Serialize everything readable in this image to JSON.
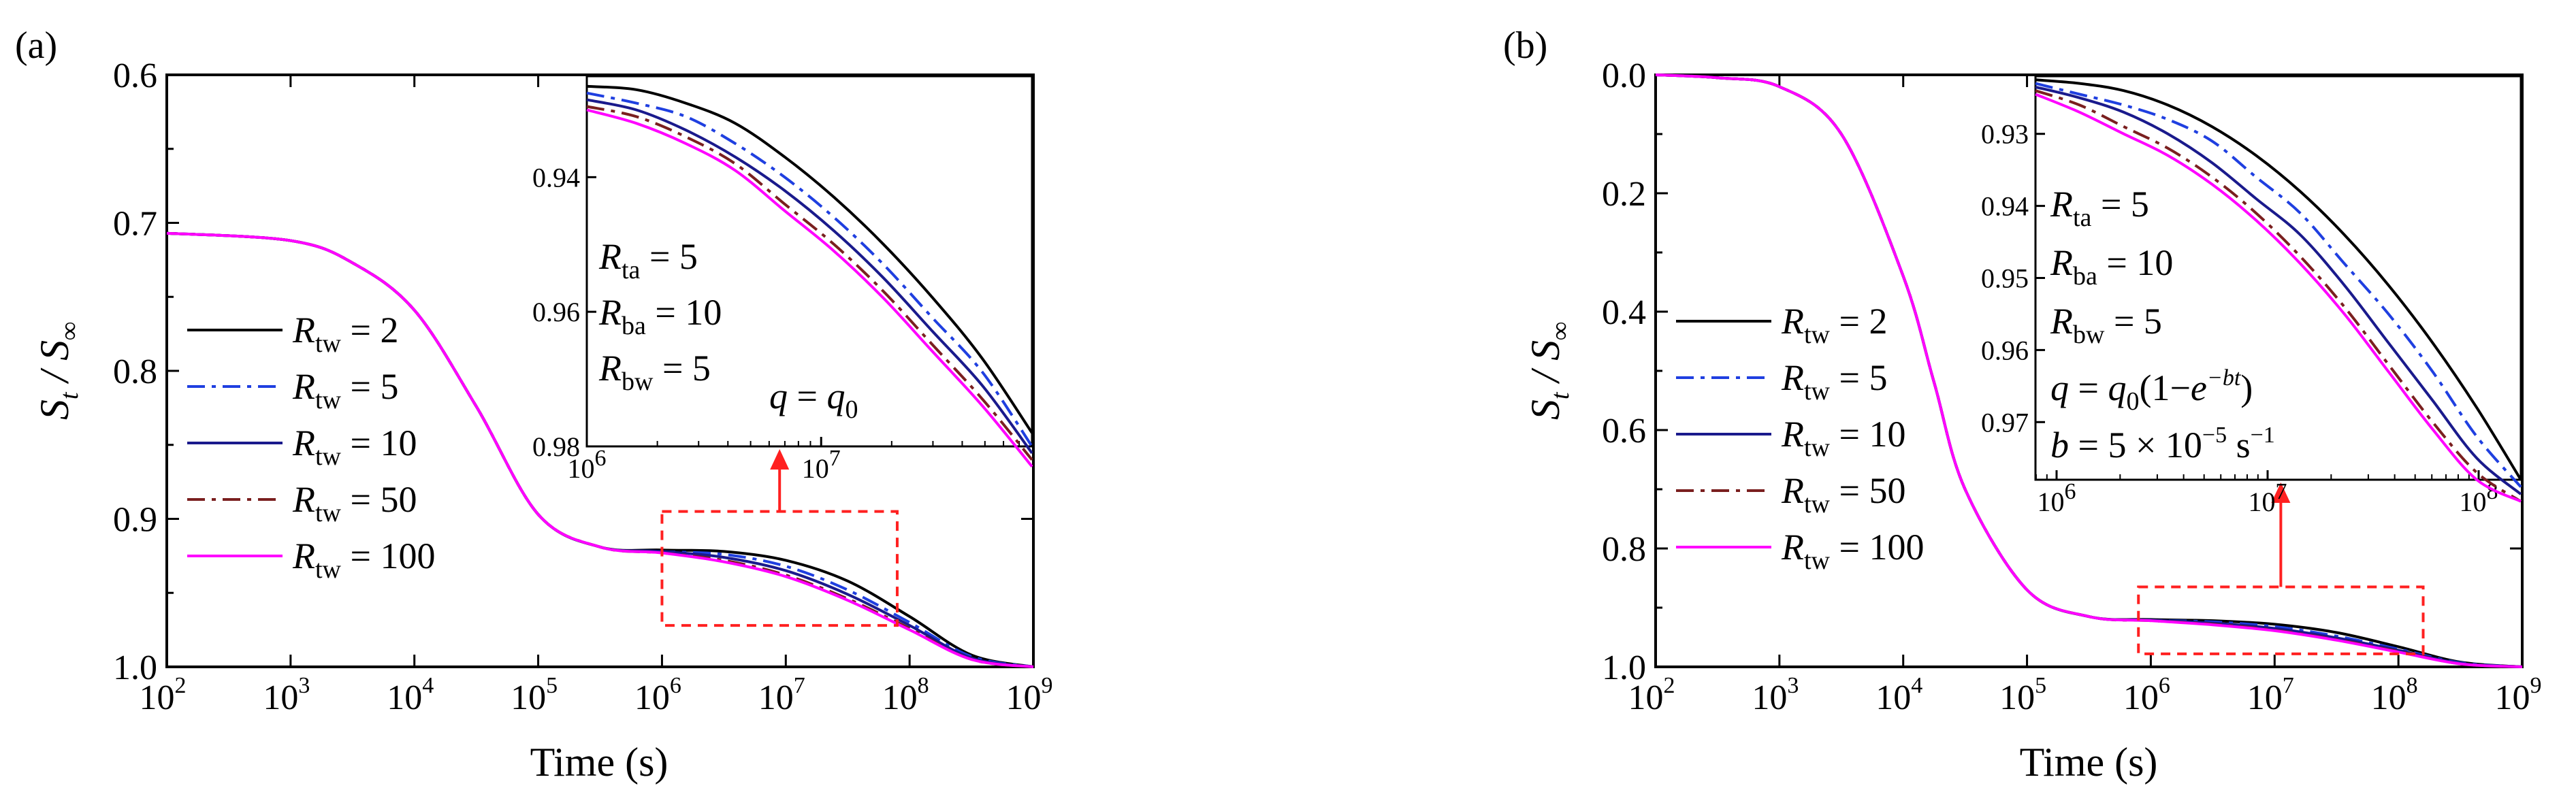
{
  "figure": {
    "panels": [
      "(a)",
      "(b)"
    ]
  },
  "chart_data": [
    {
      "type": "line",
      "panel": "(a)",
      "xlabel": "Time (s)",
      "ylabel": "S_t / S_∞",
      "xscale": "log",
      "xlim": [
        100,
        1000000000
      ],
      "ylim": [
        0.6,
        1.0
      ],
      "y_inverted": true,
      "x_ticks": [
        "2",
        "3",
        "4",
        "5",
        "6",
        "7",
        "8",
        "9"
      ],
      "y_ticks": [
        "0.6",
        "0.7",
        "0.8",
        "0.9",
        "1.0"
      ],
      "legend": [
        {
          "base": "R",
          "sub": "tw",
          "label": "= 2",
          "color": "#000000",
          "dash": "solid"
        },
        {
          "base": "R",
          "sub": "tw",
          "label": "= 5",
          "color": "#1f3fe0",
          "dash": "dashdot"
        },
        {
          "base": "R",
          "sub": "tw",
          "label": "= 10",
          "color": "#1a1a8c",
          "dash": "solid"
        },
        {
          "base": "R",
          "sub": "tw",
          "label": "= 50",
          "color": "#7a1f1f",
          "dash": "dashdot"
        },
        {
          "base": "R",
          "sub": "tw",
          "label": "= 100",
          "color": "#ff00ff",
          "dash": "solid"
        }
      ],
      "series": [
        {
          "name": "Rtw = 2",
          "x_log10": [
            2,
            3,
            3.5,
            4,
            4.5,
            5,
            5.5,
            6,
            6.5,
            7,
            7.5,
            8,
            8.5,
            9
          ],
          "y": [
            0.707,
            0.712,
            0.727,
            0.759,
            0.824,
            0.897,
            0.919,
            0.921,
            0.922,
            0.928,
            0.942,
            0.966,
            0.992,
            1.0
          ]
        },
        {
          "name": "Rtw = 5",
          "x_log10": [
            2,
            3,
            3.5,
            4,
            4.5,
            5,
            5.5,
            6,
            6.5,
            7,
            7.5,
            8,
            8.5,
            9
          ],
          "y": [
            0.707,
            0.712,
            0.727,
            0.759,
            0.824,
            0.897,
            0.919,
            0.922,
            0.924,
            0.932,
            0.948,
            0.97,
            0.993,
            1.0
          ]
        },
        {
          "name": "Rtw = 10",
          "x_log10": [
            2,
            3,
            3.5,
            4,
            4.5,
            5,
            5.5,
            6,
            6.5,
            7,
            7.5,
            8,
            8.5,
            9
          ],
          "y": [
            0.707,
            0.712,
            0.727,
            0.759,
            0.824,
            0.897,
            0.919,
            0.922,
            0.926,
            0.935,
            0.951,
            0.972,
            0.994,
            1.0
          ]
        },
        {
          "name": "Rtw = 50",
          "x_log10": [
            2,
            3,
            3.5,
            4,
            4.5,
            5,
            5.5,
            6,
            6.5,
            7,
            7.5,
            8,
            8.5,
            9
          ],
          "y": [
            0.707,
            0.712,
            0.727,
            0.759,
            0.824,
            0.897,
            0.919,
            0.923,
            0.928,
            0.938,
            0.954,
            0.974,
            0.995,
            1.0
          ]
        },
        {
          "name": "Rtw = 100",
          "x_log10": [
            2,
            3,
            3.5,
            4,
            4.5,
            5,
            5.5,
            6,
            6.5,
            7,
            7.5,
            8,
            8.5,
            9
          ],
          "y": [
            0.707,
            0.712,
            0.727,
            0.759,
            0.824,
            0.897,
            0.919,
            0.923,
            0.929,
            0.939,
            0.955,
            0.975,
            0.995,
            1.0
          ]
        }
      ],
      "zoom_box": {
        "x_log10": [
          6,
          7.9
        ],
        "y": [
          0.895,
          0.972
        ]
      },
      "inset": {
        "xlim_log10": [
          6,
          7.9
        ],
        "ylim": [
          0.925,
          0.98
        ],
        "x_ticks": [
          "6",
          "7"
        ],
        "y_ticks": [
          "0.94",
          "0.96",
          "0.98"
        ],
        "annotations": [
          {
            "base": "R",
            "sub": "ta",
            "rest": "= 5"
          },
          {
            "base": "R",
            "sub": "ba",
            "rest": "= 10"
          },
          {
            "base": "R",
            "sub": "bw",
            "rest": "= 5"
          }
        ],
        "formula": "q = q0",
        "series_y": [
          [
            0.9265,
            0.927,
            0.929,
            0.932,
            0.937,
            0.943,
            0.95,
            0.958,
            0.967,
            0.978
          ],
          [
            0.9275,
            0.929,
            0.931,
            0.935,
            0.94,
            0.946,
            0.953,
            0.961,
            0.969,
            0.98
          ],
          [
            0.9285,
            0.93,
            0.933,
            0.937,
            0.942,
            0.948,
            0.955,
            0.963,
            0.971,
            0.981
          ],
          [
            0.9295,
            0.931,
            0.934,
            0.938,
            0.944,
            0.95,
            0.957,
            0.965,
            0.973,
            0.982
          ],
          [
            0.93,
            0.932,
            0.935,
            0.939,
            0.945,
            0.951,
            0.958,
            0.966,
            0.974,
            0.983
          ]
        ]
      }
    },
    {
      "type": "line",
      "panel": "(b)",
      "xlabel": "Time (s)",
      "ylabel": "S_t / S_∞",
      "xscale": "log",
      "xlim": [
        100,
        1000000000
      ],
      "ylim": [
        0.0,
        1.0
      ],
      "y_inverted": true,
      "x_ticks": [
        "2",
        "3",
        "4",
        "5",
        "6",
        "7",
        "8",
        "9"
      ],
      "y_ticks": [
        "0.0",
        "0.2",
        "0.4",
        "0.6",
        "0.8",
        "1.0"
      ],
      "legend": [
        {
          "base": "R",
          "sub": "tw",
          "label": "= 2",
          "color": "#000000",
          "dash": "solid"
        },
        {
          "base": "R",
          "sub": "tw",
          "label": "= 5",
          "color": "#1f3fe0",
          "dash": "dashdot"
        },
        {
          "base": "R",
          "sub": "tw",
          "label": "= 10",
          "color": "#1a1a8c",
          "dash": "solid"
        },
        {
          "base": "R",
          "sub": "tw",
          "label": "= 50",
          "color": "#7a1f1f",
          "dash": "dashdot"
        },
        {
          "base": "R",
          "sub": "tw",
          "label": "= 100",
          "color": "#ff00ff",
          "dash": "solid"
        }
      ],
      "series": [
        {
          "name": "Rtw = 2",
          "x_log10": [
            2,
            2.5,
            3,
            3.5,
            4,
            4.25,
            4.5,
            5,
            5.5,
            6,
            6.5,
            7,
            7.5,
            8,
            8.5,
            9
          ],
          "y": [
            0.0,
            0.005,
            0.02,
            0.1,
            0.34,
            0.52,
            0.7,
            0.87,
            0.915,
            0.92,
            0.922,
            0.928,
            0.942,
            0.966,
            0.992,
            1.0
          ]
        },
        {
          "name": "Rtw = 5",
          "x_log10": [
            2,
            2.5,
            3,
            3.5,
            4,
            4.25,
            4.5,
            5,
            5.5,
            6,
            6.5,
            7,
            7.5,
            8,
            8.5,
            9
          ],
          "y": [
            0.0,
            0.005,
            0.02,
            0.1,
            0.34,
            0.52,
            0.7,
            0.87,
            0.915,
            0.921,
            0.924,
            0.932,
            0.948,
            0.97,
            0.993,
            1.0
          ]
        },
        {
          "name": "Rtw = 10",
          "x_log10": [
            2,
            2.5,
            3,
            3.5,
            4,
            4.25,
            4.5,
            5,
            5.5,
            6,
            6.5,
            7,
            7.5,
            8,
            8.5,
            9
          ],
          "y": [
            0.0,
            0.005,
            0.02,
            0.1,
            0.34,
            0.52,
            0.7,
            0.87,
            0.915,
            0.921,
            0.926,
            0.935,
            0.951,
            0.972,
            0.994,
            1.0
          ]
        },
        {
          "name": "Rtw = 50",
          "x_log10": [
            2,
            2.5,
            3,
            3.5,
            4,
            4.25,
            4.5,
            5,
            5.5,
            6,
            6.5,
            7,
            7.5,
            8,
            8.5,
            9
          ],
          "y": [
            0.0,
            0.005,
            0.02,
            0.1,
            0.34,
            0.52,
            0.7,
            0.87,
            0.915,
            0.922,
            0.928,
            0.938,
            0.954,
            0.974,
            0.995,
            1.0
          ]
        },
        {
          "name": "Rtw = 100",
          "x_log10": [
            2,
            2.5,
            3,
            3.5,
            4,
            4.25,
            4.5,
            5,
            5.5,
            6,
            6.5,
            7,
            7.5,
            8,
            8.5,
            9
          ],
          "y": [
            0.0,
            0.005,
            0.02,
            0.1,
            0.34,
            0.52,
            0.7,
            0.87,
            0.915,
            0.922,
            0.929,
            0.939,
            0.955,
            0.975,
            0.995,
            1.0
          ]
        }
      ],
      "zoom_box": {
        "x_log10": [
          5.9,
          8.2
        ],
        "y": [
          0.865,
          0.978
        ]
      },
      "inset": {
        "xlim_log10": [
          5.9,
          8.2
        ],
        "ylim": [
          0.922,
          0.978
        ],
        "x_ticks": [
          "6",
          "7",
          "8"
        ],
        "y_ticks": [
          "0.93",
          "0.94",
          "0.95",
          "0.96",
          "0.97"
        ],
        "annotations": [
          {
            "base": "R",
            "sub": "ta",
            "rest": "= 5"
          },
          {
            "base": "R",
            "sub": "ba",
            "rest": "= 10"
          },
          {
            "base": "R",
            "sub": "bw",
            "rest": "= 5"
          }
        ],
        "formula": "q = q0(1−e^(−bt))",
        "formula2": "b = 5 × 10^−5 s^−1",
        "series_y": [
          [
            0.9225,
            0.923,
            0.924,
            0.926,
            0.929,
            0.933,
            0.938,
            0.944,
            0.951,
            0.959,
            0.968,
            0.978
          ],
          [
            0.923,
            0.9245,
            0.926,
            0.928,
            0.931,
            0.936,
            0.941,
            0.948,
            0.955,
            0.963,
            0.972,
            0.979
          ],
          [
            0.9235,
            0.925,
            0.927,
            0.93,
            0.934,
            0.939,
            0.944,
            0.951,
            0.959,
            0.967,
            0.975,
            0.98
          ],
          [
            0.924,
            0.926,
            0.929,
            0.932,
            0.936,
            0.941,
            0.947,
            0.954,
            0.962,
            0.97,
            0.977,
            0.981
          ],
          [
            0.9245,
            0.927,
            0.93,
            0.933,
            0.937,
            0.942,
            0.948,
            0.955,
            0.963,
            0.971,
            0.978,
            0.981
          ]
        ]
      }
    }
  ]
}
